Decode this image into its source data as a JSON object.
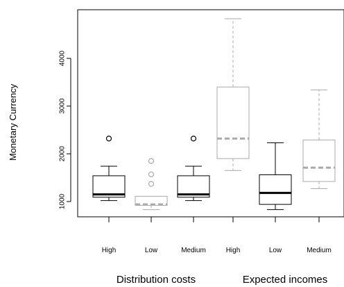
{
  "chart_data": {
    "type": "boxplot",
    "title": "",
    "ylabel": "Monetary Currency",
    "xlabel": "",
    "ylim": [
      650,
      4900
    ],
    "yticks": [
      1000,
      2000,
      3000,
      4000
    ],
    "ytick_labels": [
      "1000",
      "2000",
      "3000",
      "4000"
    ],
    "groups": [
      {
        "name": "Distribution costs",
        "categories": [
          "High",
          "Low",
          "Medium"
        ]
      },
      {
        "name": "Expected incomes",
        "categories": [
          "High",
          "Low",
          "Medium"
        ]
      }
    ],
    "boxes": [
      {
        "group": "Distribution costs",
        "category": "High",
        "color": "#000000",
        "dashed": false,
        "whisker_low": 1020,
        "q1": 1090,
        "median": 1150,
        "q3": 1540,
        "whisker_high": 1740,
        "outliers": [
          2320
        ]
      },
      {
        "group": "Distribution costs",
        "category": "Low",
        "color": "#aaaaaa",
        "dashed": true,
        "whisker_low": 830,
        "q1": 920,
        "median": 940,
        "q3": 1110,
        "whisker_high": 1110,
        "outliers": [
          1370,
          1570,
          1850
        ]
      },
      {
        "group": "Distribution costs",
        "category": "Medium",
        "color": "#000000",
        "dashed": false,
        "whisker_low": 1020,
        "q1": 1090,
        "median": 1150,
        "q3": 1540,
        "whisker_high": 1740,
        "outliers": [
          2320
        ]
      },
      {
        "group": "Expected incomes",
        "category": "High",
        "color": "#aaaaaa",
        "dashed": true,
        "whisker_low": 1650,
        "q1": 1900,
        "median": 2320,
        "q3": 3400,
        "whisker_high": 4830,
        "outliers": []
      },
      {
        "group": "Expected incomes",
        "category": "Low",
        "color": "#000000",
        "dashed": false,
        "whisker_low": 830,
        "q1": 940,
        "median": 1180,
        "q3": 1560,
        "whisker_high": 2230,
        "outliers": []
      },
      {
        "group": "Expected incomes",
        "category": "Medium",
        "color": "#aaaaaa",
        "dashed": true,
        "whisker_low": 1270,
        "q1": 1420,
        "median": 1710,
        "q3": 2290,
        "whisker_high": 3340,
        "outliers": []
      }
    ],
    "grid": false,
    "legend": "none"
  }
}
